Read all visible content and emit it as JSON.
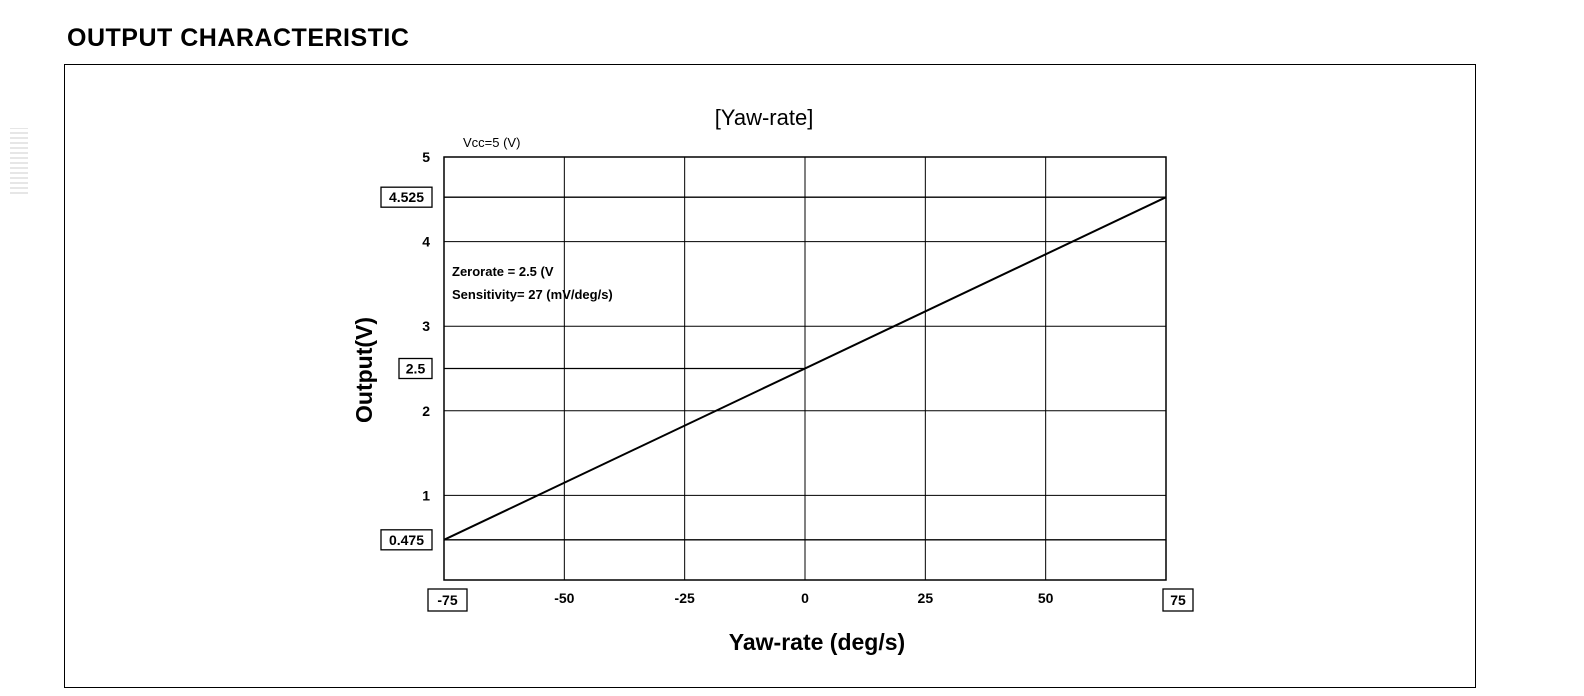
{
  "page": {
    "heading": "OUTPUT CHARACTERISTIC"
  },
  "chart_data": {
    "type": "line",
    "title": "[Yaw-rate]",
    "xlabel": "Yaw-rate  (deg/s)",
    "ylabel": "Output(V)",
    "xlim": [
      -75,
      75
    ],
    "ylim": [
      0,
      5
    ],
    "x_ticks": [
      "-75",
      "-50",
      "-25",
      "0",
      "25",
      "50",
      "75"
    ],
    "y_ticks": [
      "1",
      "2",
      "3",
      "4",
      "5"
    ],
    "boxed_x_ticks": [
      "-75",
      "75"
    ],
    "boxed_y_ticks": [
      "0.475",
      "2.5",
      "4.525"
    ],
    "grid": true,
    "series": [
      {
        "x": [
          -75,
          75
        ],
        "y": [
          0.475,
          4.525
        ]
      }
    ],
    "annotations": {
      "supply": "Vcc=5 (V)",
      "zero_rate": "Zerorate = 2.5 (V",
      "sensitivity": "Sensitivity= 27 (mV/deg/s)"
    },
    "colors": {
      "line": "#000000",
      "grid": "#000000"
    }
  }
}
